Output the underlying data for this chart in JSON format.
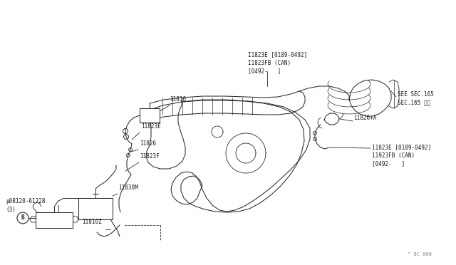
{
  "bg_color": "#ffffff",
  "line_color": "#2a2a2a",
  "text_color": "#1a1a1a",
  "watermark": "^ 8C 006",
  "labels": {
    "top_label": "I1823E [0189-0492]\nI1823FB (CAN)\n[0492-   ]",
    "see_sec": "SEE SEC.165\nSEC.165 参照",
    "l11826a": "11826+A",
    "l11823e_right": "11823E [0189-0492]\n11923FB (CAN)\n[0492-   ]",
    "l11810": "11810",
    "l11823e": "11823E",
    "l11826": "11826",
    "l11823f": "11823F",
    "l11830m": "11830M",
    "l08120": "µ08120-61228\n(3)",
    "l11810z": "11810Z"
  },
  "font_size": 5.5
}
